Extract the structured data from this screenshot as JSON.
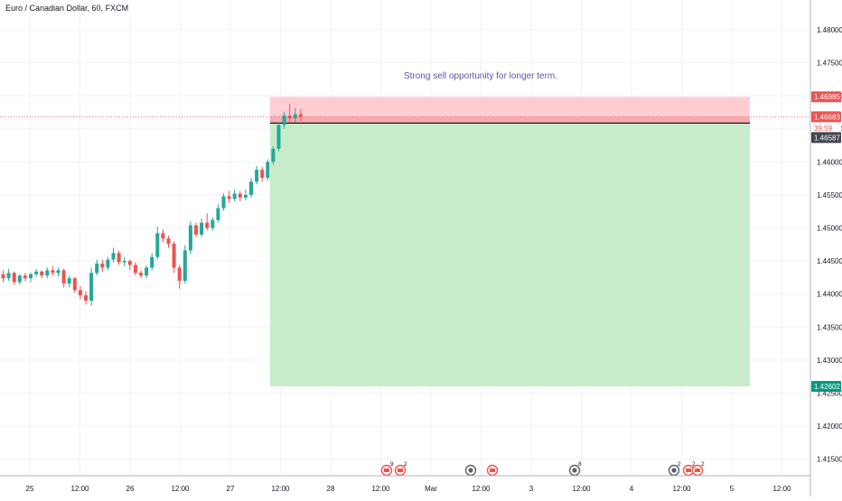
{
  "header": {
    "symbol_title": "Euro / Canadian Dollar, 60, FXCM"
  },
  "annotation": {
    "text": "Strong sell opportunity for longer term."
  },
  "colors": {
    "up": "#26a69a",
    "down": "#ef5350",
    "profit_zone": "#c8ecc9",
    "loss_zone": "#ffcdd2",
    "entry_line": "#131722",
    "annotation_text": "#5b55a8",
    "axis_text": "#131722",
    "grid": "#f0f3fa"
  },
  "price_labels": {
    "stop": "1.46985",
    "current": "1.46683",
    "countdown": "39:59",
    "entry": "1.46587",
    "target": "1.42602"
  },
  "event_markers": [
    {
      "icon": "flag-icon",
      "count": "9"
    },
    {
      "icon": "flag-icon",
      "count": "2"
    },
    {
      "icon": "earnings-icon",
      "count": ""
    },
    {
      "icon": "flag-icon",
      "count": ""
    },
    {
      "icon": "earnings-icon",
      "count": "8"
    },
    {
      "icon": "earnings-icon",
      "count": "2"
    },
    {
      "icon": "flag-icon",
      "count": "2"
    },
    {
      "icon": "flag-icon",
      "count": "2"
    }
  ],
  "chart_data": {
    "type": "candlestick",
    "title": "Euro / Canadian Dollar, 60, FXCM",
    "ylim": [
      1.4125,
      1.4845
    ],
    "yticks": [
      "1.41500",
      "1.42000",
      "1.42500",
      "1.43000",
      "1.43500",
      "1.44000",
      "1.44500",
      "1.45000",
      "1.45500",
      "1.46000",
      "1.46500",
      "1.47000",
      "1.47500",
      "1.48000"
    ],
    "xticks": [
      "25",
      "12:00",
      "26",
      "12:00",
      "27",
      "12:00",
      "28",
      "12:00",
      "Mar",
      "12:00",
      "3",
      "12:00",
      "4",
      "12:00",
      "5",
      "12:00"
    ],
    "position": {
      "kind": "short",
      "entry": 1.46587,
      "stop": 1.46985,
      "target": 1.42602
    },
    "current_price": 1.46683,
    "candles": [
      [
        1.443,
        1.4436,
        1.4418,
        1.4424
      ],
      [
        1.4424,
        1.4438,
        1.442,
        1.4432
      ],
      [
        1.4432,
        1.4434,
        1.4414,
        1.4418
      ],
      [
        1.4418,
        1.443,
        1.4414,
        1.4428
      ],
      [
        1.4428,
        1.4432,
        1.442,
        1.4424
      ],
      [
        1.4424,
        1.4432,
        1.4418,
        1.443
      ],
      [
        1.443,
        1.4438,
        1.4426,
        1.4434
      ],
      [
        1.4434,
        1.4436,
        1.4424,
        1.4428
      ],
      [
        1.4428,
        1.444,
        1.4424,
        1.4436
      ],
      [
        1.4436,
        1.4442,
        1.4428,
        1.4432
      ],
      [
        1.4432,
        1.444,
        1.4426,
        1.4436
      ],
      [
        1.4436,
        1.4438,
        1.441,
        1.4416
      ],
      [
        1.4416,
        1.4428,
        1.441,
        1.4424
      ],
      [
        1.4424,
        1.4426,
        1.4402,
        1.4406
      ],
      [
        1.4406,
        1.4412,
        1.4392,
        1.4398
      ],
      [
        1.4398,
        1.4404,
        1.4384,
        1.439
      ],
      [
        1.439,
        1.444,
        1.4382,
        1.4432
      ],
      [
        1.4432,
        1.4452,
        1.4428,
        1.4446
      ],
      [
        1.4446,
        1.4452,
        1.4434,
        1.444
      ],
      [
        1.444,
        1.4456,
        1.4436,
        1.4452
      ],
      [
        1.4452,
        1.447,
        1.4448,
        1.4462
      ],
      [
        1.4462,
        1.4466,
        1.4444,
        1.4448
      ],
      [
        1.4448,
        1.4456,
        1.4442,
        1.445
      ],
      [
        1.445,
        1.4452,
        1.4436,
        1.4444
      ],
      [
        1.4444,
        1.4448,
        1.4428,
        1.4432
      ],
      [
        1.4432,
        1.4436,
        1.4424,
        1.4428
      ],
      [
        1.4428,
        1.4444,
        1.4424,
        1.444
      ],
      [
        1.444,
        1.4462,
        1.4436,
        1.4456
      ],
      [
        1.4456,
        1.4502,
        1.4452,
        1.4492
      ],
      [
        1.4492,
        1.4498,
        1.4478,
        1.4484
      ],
      [
        1.4484,
        1.4488,
        1.447,
        1.4476
      ],
      [
        1.4476,
        1.448,
        1.4432,
        1.444
      ],
      [
        1.444,
        1.4444,
        1.4408,
        1.442
      ],
      [
        1.442,
        1.4474,
        1.4416,
        1.4466
      ],
      [
        1.4466,
        1.451,
        1.446,
        1.4504
      ],
      [
        1.4504,
        1.4508,
        1.4486,
        1.449
      ],
      [
        1.449,
        1.4514,
        1.4486,
        1.4508
      ],
      [
        1.4508,
        1.4522,
        1.4496,
        1.45
      ],
      [
        1.45,
        1.4516,
        1.4496,
        1.4512
      ],
      [
        1.4512,
        1.4536,
        1.4508,
        1.453
      ],
      [
        1.453,
        1.4552,
        1.4526,
        1.4548
      ],
      [
        1.4548,
        1.4556,
        1.4538,
        1.4544
      ],
      [
        1.4544,
        1.4558,
        1.454,
        1.4552
      ],
      [
        1.4552,
        1.4556,
        1.454,
        1.4546
      ],
      [
        1.4546,
        1.4558,
        1.4542,
        1.455
      ],
      [
        1.455,
        1.4576,
        1.4546,
        1.457
      ],
      [
        1.457,
        1.4594,
        1.4566,
        1.4588
      ],
      [
        1.4588,
        1.4592,
        1.457,
        1.4576
      ],
      [
        1.4576,
        1.4604,
        1.4572,
        1.46
      ],
      [
        1.46,
        1.4624,
        1.4596,
        1.462
      ],
      [
        1.462,
        1.466,
        1.4616,
        1.4656
      ],
      [
        1.4656,
        1.4676,
        1.465,
        1.467
      ],
      [
        1.467,
        1.4688,
        1.466,
        1.4666
      ],
      [
        1.4666,
        1.4682,
        1.466,
        1.4672
      ],
      [
        1.4672,
        1.468,
        1.4662,
        1.4668
      ]
    ]
  }
}
